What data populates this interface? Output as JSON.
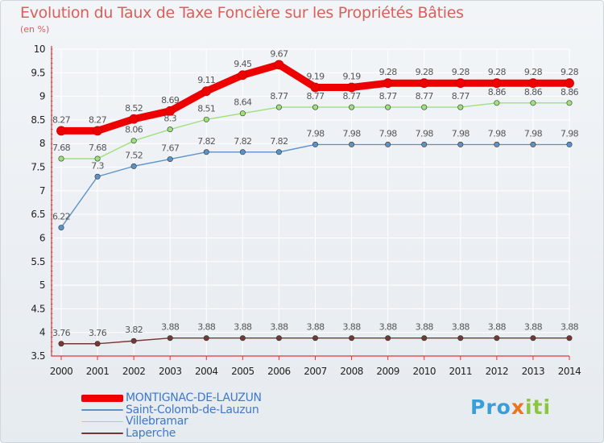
{
  "header": {
    "title": "Evolution du Taux de Taxe Foncière sur les Propriétés Bâties",
    "unit": "(en %)"
  },
  "logo": {
    "text": "Proxiti",
    "parts": [
      "Pro",
      "x",
      "iti"
    ],
    "colors": [
      "#3a9ed8",
      "#e8761e",
      "#8cc63f"
    ]
  },
  "colors": {
    "title": "#d8605a",
    "axis": "#d93a3a",
    "grid": "#ffffff",
    "background_top": "#f2f5f8",
    "background_bottom": "#e6ebf0",
    "legend_text": "#3f78c8",
    "label_text": "#555555"
  },
  "chart_data": {
    "type": "line",
    "title": "Evolution du Taux de Taxe Foncière sur les Propriétés Bâties",
    "ylabel": "(en %)",
    "xlabel": "",
    "x": [
      2000,
      2001,
      2002,
      2003,
      2004,
      2005,
      2006,
      2007,
      2008,
      2009,
      2010,
      2011,
      2012,
      2013,
      2014
    ],
    "ylim": [
      3.5,
      10
    ],
    "yticks": [
      3.5,
      4,
      4.5,
      5,
      5.5,
      6,
      6.5,
      7,
      7.5,
      8,
      8.5,
      9,
      9.5,
      10
    ],
    "grid": true,
    "legend_position": "bottom-left",
    "series": [
      {
        "name": "MONTIGNAC-DE-LAUZUN",
        "color": "#ee0000",
        "values": [
          8.27,
          8.27,
          8.52,
          8.69,
          9.11,
          9.45,
          9.67,
          9.19,
          9.19,
          9.28,
          9.28,
          9.28,
          9.28,
          9.28,
          9.28
        ],
        "labels": [
          "8.27",
          "8.27",
          "8.52",
          "8.69",
          "9.11",
          "9.45",
          "9.67",
          "9.19",
          "9.19",
          "9.28",
          "9.28",
          "9.28",
          "9.28",
          "9.28",
          "9.28"
        ]
      },
      {
        "name": "Saint-Colomb-de-Lauzun",
        "color": "#5b93c8",
        "values": [
          6.22,
          7.3,
          7.52,
          7.67,
          7.82,
          7.82,
          7.82,
          7.98,
          7.98,
          7.98,
          7.98,
          7.98,
          7.98,
          7.98,
          7.98
        ],
        "labels": [
          "6.22",
          "7.3",
          "7.52",
          "7.67",
          "7.82",
          "7.82",
          "7.82",
          "7.98",
          "7.98",
          "7.98",
          "7.98",
          "7.98",
          "7.98",
          "7.98",
          "7.98"
        ]
      },
      {
        "name": "Villebramar",
        "color": "#9ee07a",
        "values": [
          7.68,
          7.68,
          8.06,
          8.3,
          8.51,
          8.64,
          8.77,
          8.77,
          8.77,
          8.77,
          8.77,
          8.77,
          8.86,
          8.86,
          8.86
        ],
        "labels": [
          "7.68",
          "7.68",
          "8.06",
          "8.3",
          "8.51",
          "8.64",
          "8.77",
          "8.77",
          "8.77",
          "8.77",
          "8.77",
          "8.77",
          "8.86",
          "8.86",
          "8.86"
        ]
      },
      {
        "name": "Laperche",
        "color": "#7a3535",
        "values": [
          3.76,
          3.76,
          3.82,
          3.88,
          3.88,
          3.88,
          3.88,
          3.88,
          3.88,
          3.88,
          3.88,
          3.88,
          3.88,
          3.88,
          3.88
        ],
        "labels": [
          "3.76",
          "3.76",
          "3.82",
          "3.88",
          "3.88",
          "3.88",
          "3.88",
          "3.88",
          "3.88",
          "3.88",
          "3.88",
          "3.88",
          "3.88",
          "3.88",
          "3.88"
        ]
      }
    ]
  }
}
